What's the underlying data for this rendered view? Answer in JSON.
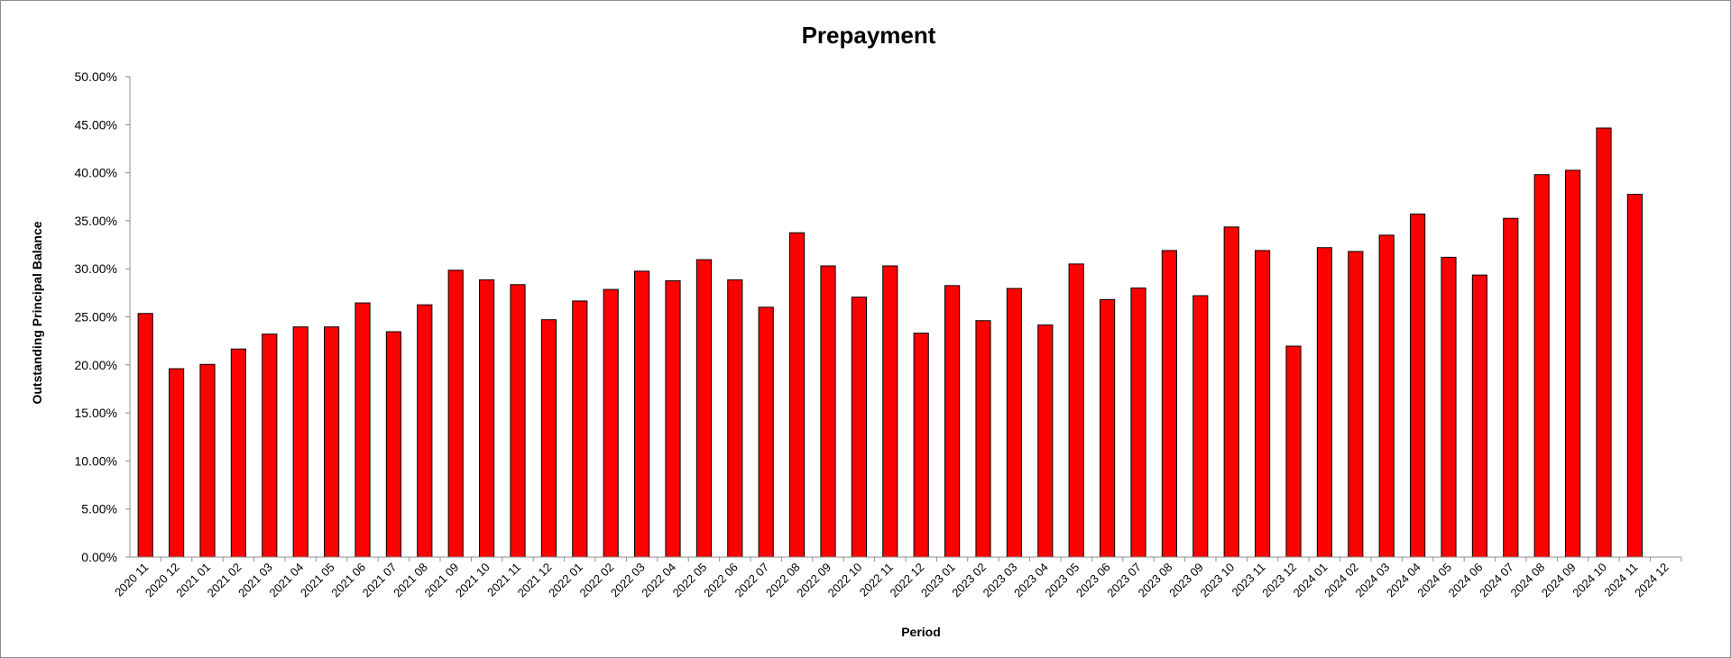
{
  "chart_data": {
    "type": "bar",
    "title": "Prepayment",
    "xlabel": "Period",
    "ylabel": "Outstanding Principal Balance",
    "ylim": [
      0,
      0.5
    ],
    "y_tick_labels": [
      "0.00%",
      "5.00%",
      "10.00%",
      "15.00%",
      "20.00%",
      "25.00%",
      "30.00%",
      "35.00%",
      "40.00%",
      "45.00%",
      "50.00%"
    ],
    "grid": false,
    "bar_color": "#ff0000",
    "categories": [
      "2020 11",
      "2020 12",
      "2021 01",
      "2021 02",
      "2021 03",
      "2021 04",
      "2021 05",
      "2021 06",
      "2021 07",
      "2021 08",
      "2021 09",
      "2021 10",
      "2021 11",
      "2021 12",
      "2022 01",
      "2022 02",
      "2022 03",
      "2022 04",
      "2022 05",
      "2022 06",
      "2022 07",
      "2022 08",
      "2022 09",
      "2022 10",
      "2022 11",
      "2022 12",
      "2023 01",
      "2023 02",
      "2023 03",
      "2023 04",
      "2023 05",
      "2023 06",
      "2023 07",
      "2023 08",
      "2023 09",
      "2023 10",
      "2023 11",
      "2023 12",
      "2024 01",
      "2024 02",
      "2024 03",
      "2024 04",
      "2024 05",
      "2024 06",
      "2024 07",
      "2024 08",
      "2024 09",
      "2024 10",
      "2024 11",
      "2024 12"
    ],
    "values": [
      0.2535,
      0.196,
      0.2005,
      0.2165,
      0.232,
      0.2395,
      0.2395,
      0.2645,
      0.2345,
      0.2625,
      0.2985,
      0.2885,
      0.2835,
      0.247,
      0.2665,
      0.2785,
      0.2975,
      0.2875,
      0.3095,
      0.2885,
      0.26,
      0.3375,
      0.303,
      0.2705,
      0.303,
      0.233,
      0.2825,
      0.246,
      0.2795,
      0.2415,
      0.305,
      0.268,
      0.28,
      0.319,
      0.272,
      0.3435,
      0.319,
      0.2195,
      0.322,
      0.318,
      0.335,
      0.357,
      0.312,
      0.2935,
      0.3525,
      0.398,
      0.4025,
      0.4465,
      0.3775,
      null
    ]
  }
}
